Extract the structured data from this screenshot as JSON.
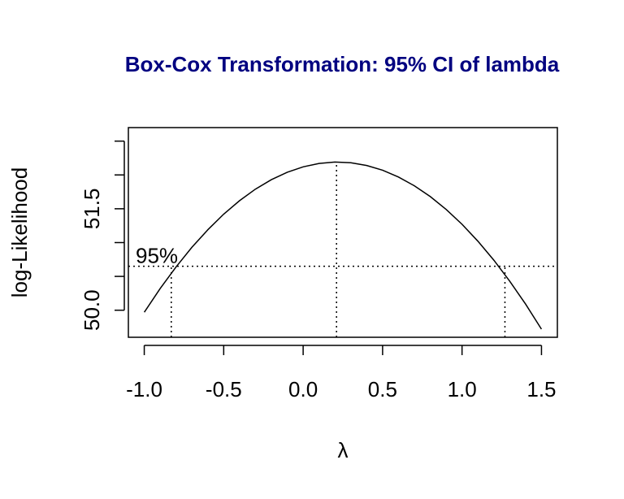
{
  "chart_data": {
    "type": "line",
    "title": "Box-Cox Transformation: 95% CI of lambda",
    "title_color": "#000080",
    "xlabel": "λ",
    "ylabel": "log-Likelihood",
    "xlim": [
      -1.1,
      1.6
    ],
    "ylim": [
      49.6,
      52.7
    ],
    "x_ticks": [
      -1.0,
      -0.5,
      0.0,
      0.5,
      1.0,
      1.5
    ],
    "x_tick_labels": [
      "-1.0",
      "-0.5",
      "0.0",
      "0.5",
      "1.0",
      "1.5"
    ],
    "y_ticks": [
      50.0,
      50.5,
      51.0,
      51.5,
      52.0,
      52.5
    ],
    "y_tick_labels": [
      "50.0",
      "",
      "",
      "51.5",
      "",
      ""
    ],
    "series": [
      {
        "x": [
          -1.0,
          -0.9,
          -0.8,
          -0.7,
          -0.6,
          -0.5,
          -0.4,
          -0.3,
          -0.2,
          -0.1,
          0.0,
          0.1,
          0.2,
          0.3,
          0.4,
          0.5,
          0.6,
          0.7,
          0.8,
          0.9,
          1.0,
          1.1,
          1.2,
          1.3,
          1.4,
          1.5
        ],
        "y": [
          49.97,
          50.32,
          50.64,
          50.93,
          51.19,
          51.42,
          51.62,
          51.79,
          51.93,
          52.04,
          52.12,
          52.17,
          52.19,
          52.18,
          52.14,
          52.07,
          51.97,
          51.84,
          51.68,
          51.49,
          51.27,
          51.02,
          50.74,
          50.43,
          50.09,
          49.72
        ]
      }
    ],
    "max_lambda": 0.21,
    "ci_lower": -0.83,
    "ci_upper": 1.27,
    "ci_loglik": 50.65,
    "ci_label": "95%",
    "grid": false,
    "line_color": "#000000"
  }
}
